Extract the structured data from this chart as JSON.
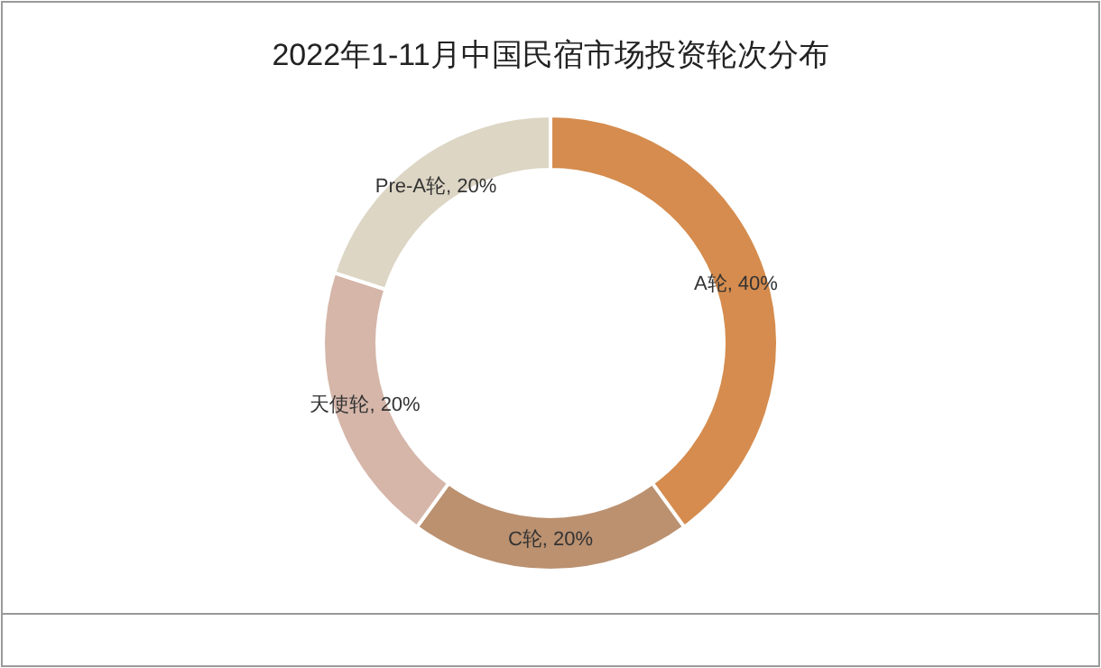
{
  "chart_data": {
    "type": "donut",
    "title": "2022年1-11月中国民宿市场投资轮次分布",
    "categories": [
      "A轮",
      "C轮",
      "天使轮",
      "Pre-A轮"
    ],
    "values": [
      40,
      20,
      20,
      20
    ],
    "colors": [
      "#d58c4e",
      "#bb9170",
      "#d5b6a9",
      "#ddd6c5"
    ],
    "value_labels": [
      ", 40%",
      ", 20%",
      ", 20%",
      ", 20%"
    ]
  }
}
